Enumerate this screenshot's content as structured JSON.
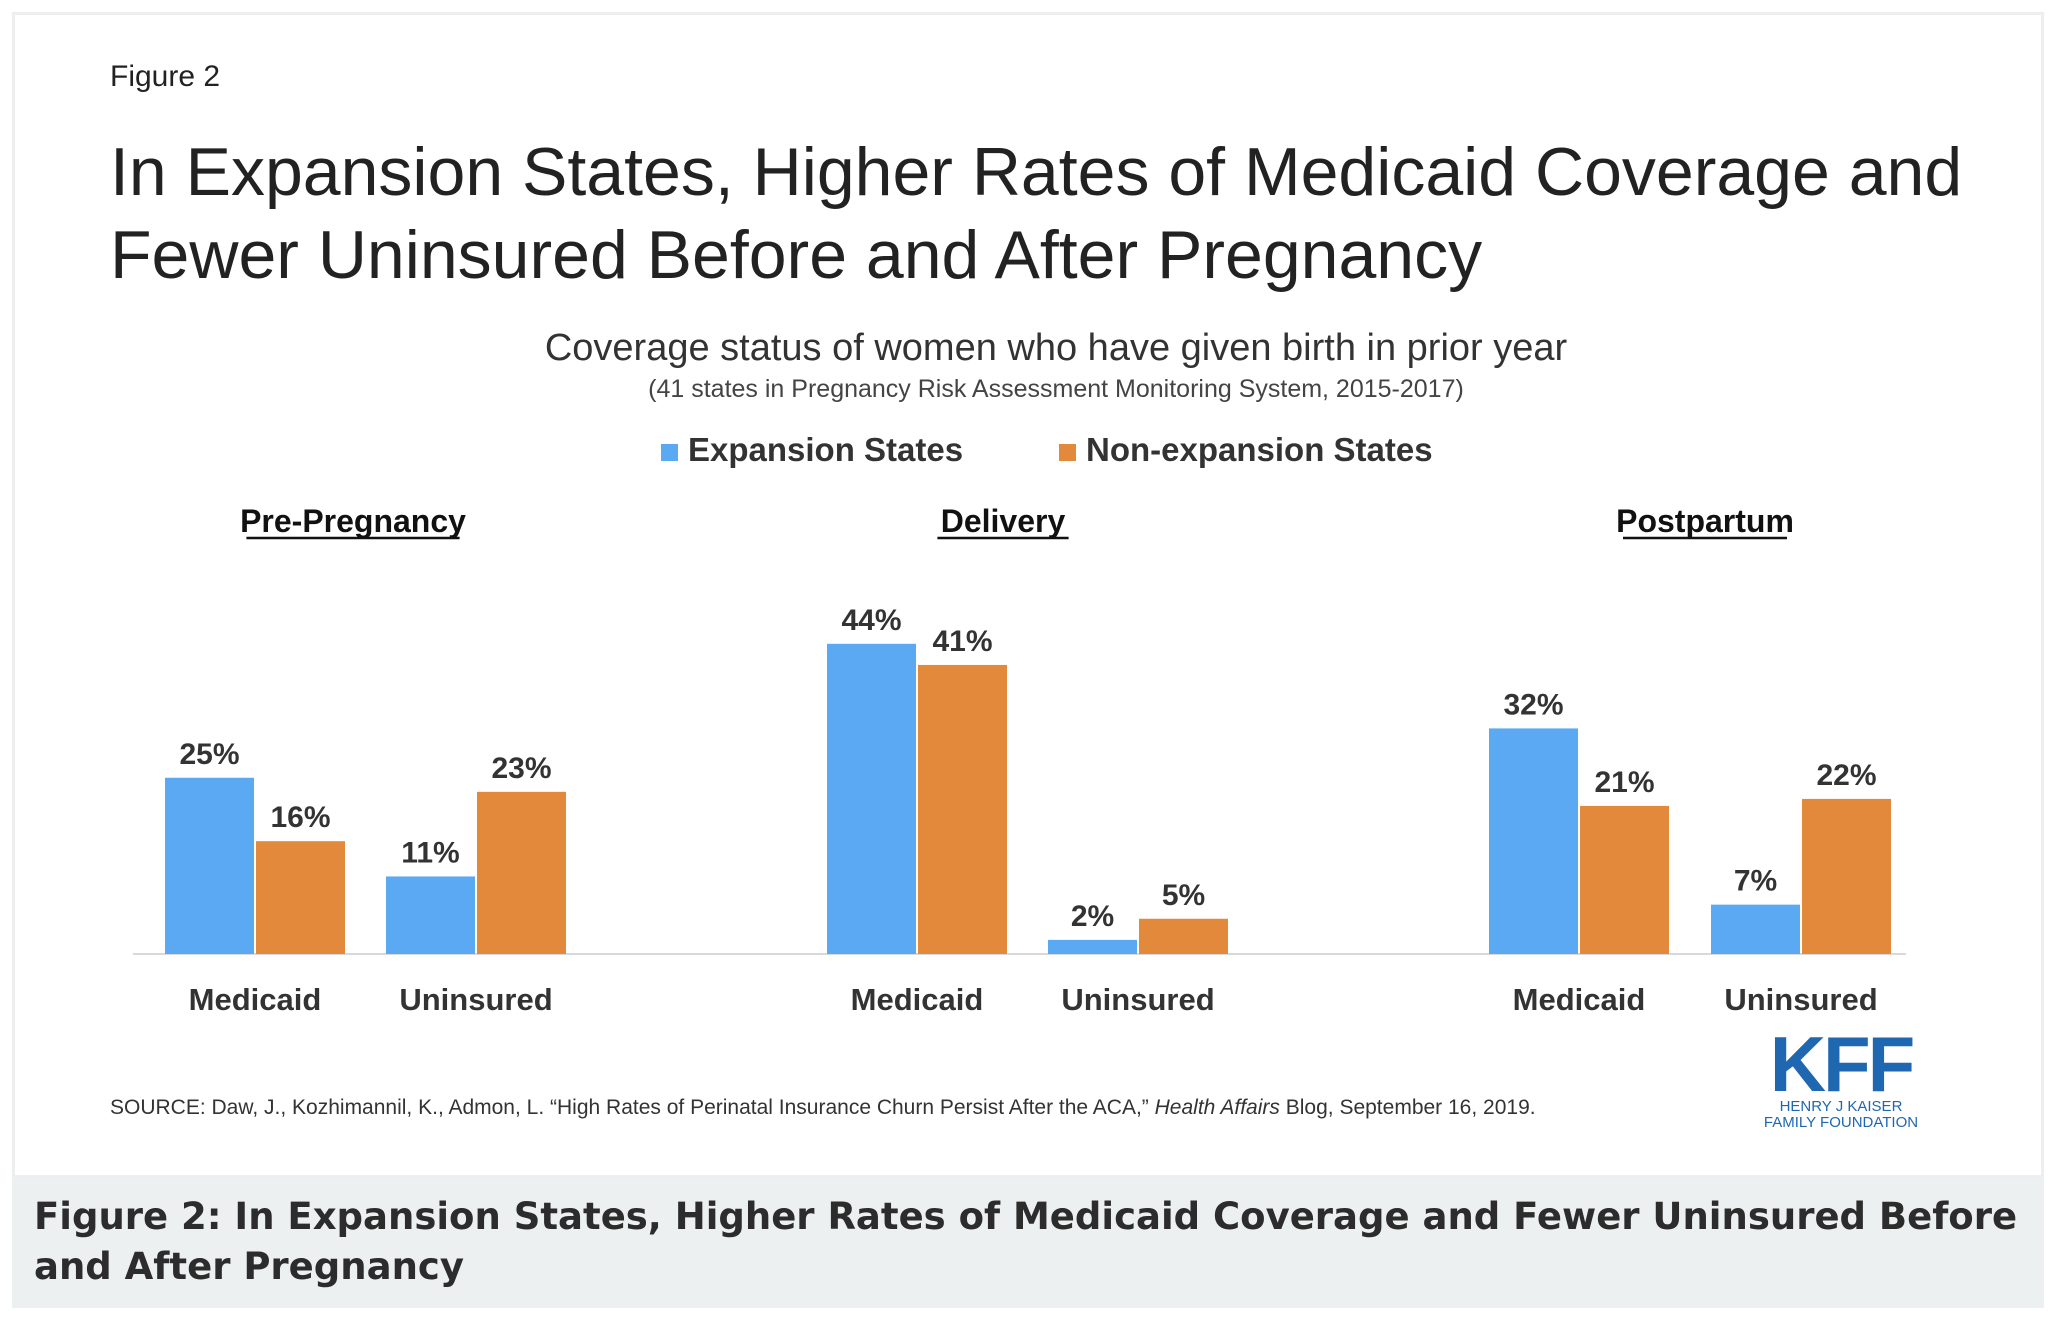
{
  "figure_label": "Figure 2",
  "chart_data": {
    "type": "bar",
    "title": "In Expansion States, Higher Rates of Medicaid Coverage and Fewer Uninsured Before and After Pregnancy",
    "title_lines": [
      "In Expansion States, Higher Rates of Medicaid Coverage and",
      "Fewer Uninsured Before and After Pregnancy"
    ],
    "subtitle": "Coverage status of women who have given birth in prior year",
    "subtitle2": "(41 states in Pregnancy Risk Assessment Monitoring System, 2015-2017)",
    "legend_placement": "top-center",
    "value_format": "percent",
    "grid": false,
    "ylim": [
      0,
      50
    ],
    "series": [
      {
        "name": "Expansion States",
        "color": "#5ba9f3"
      },
      {
        "name": "Non-expansion States",
        "color": "#e3893b"
      }
    ],
    "panels": [
      {
        "label": "Pre-Pregnancy",
        "categories": [
          "Medicaid",
          "Uninsured"
        ],
        "values": [
          [
            25,
            16
          ],
          [
            11,
            23
          ]
        ]
      },
      {
        "label": "Delivery",
        "categories": [
          "Medicaid",
          "Uninsured"
        ],
        "values": [
          [
            44,
            41
          ],
          [
            2,
            5
          ]
        ]
      },
      {
        "label": "Postpartum",
        "categories": [
          "Medicaid",
          "Uninsured"
        ],
        "values": [
          [
            32,
            21
          ],
          [
            7,
            22
          ]
        ]
      }
    ],
    "source_parts": [
      {
        "text": "SOURCE: Daw, J., Kozhimannil, K., Admon, L. “High Rates of Perinatal Insurance Churn Persist After the ACA,” ",
        "italic": false
      },
      {
        "text": "Health Affairs",
        "italic": true
      },
      {
        "text": " Blog, September 16, 2019.",
        "italic": false
      }
    ]
  },
  "logo": {
    "text": "KFF",
    "line1": "HENRY J KAISER",
    "line2": "FAMILY FOUNDATION",
    "color": "#1f67b1"
  },
  "caption": "Figure 2: In Expansion States, Higher Rates of Medicaid Coverage and Fewer Uninsured Before and After Pregnancy"
}
